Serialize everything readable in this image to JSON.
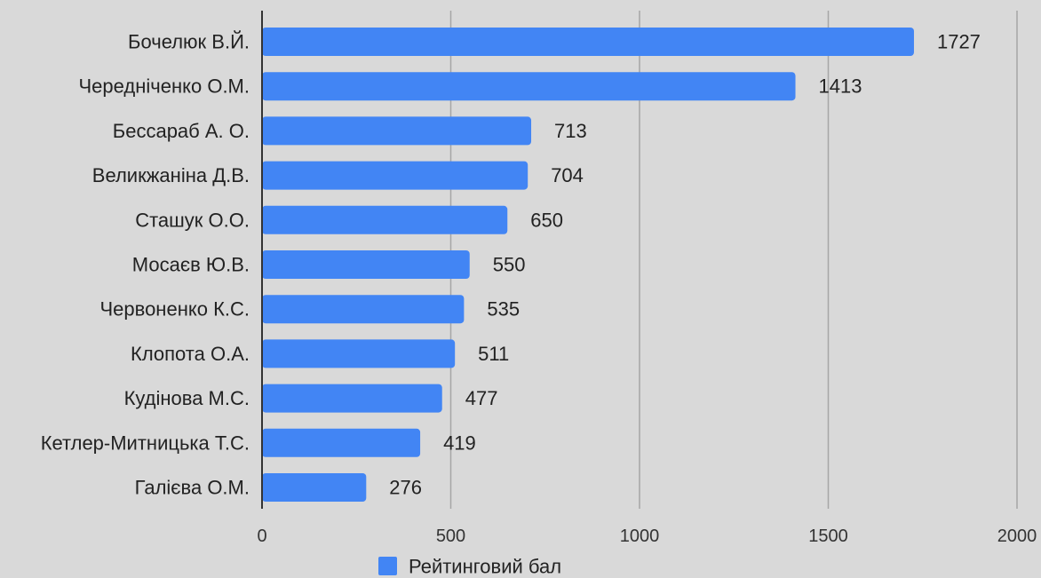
{
  "chart_data": {
    "type": "bar",
    "orientation": "horizontal",
    "categories": [
      "Бочелюк  В.Й.",
      "Чередніченко О.М.",
      "Бессараб А. О.",
      "Великжаніна Д.В.",
      "Сташук О.О.",
      "Мосаєв Ю.В.",
      "Червоненко К.С.",
      "Клопота О.А.",
      "Кудінова М.С.",
      "Кетлер-Митницька Т.С.",
      "Галієва О.М."
    ],
    "series": [
      {
        "name": "Рейтинговий бал",
        "color": "#4285f4",
        "values": [
          1727,
          1413,
          713,
          704,
          650,
          550,
          535,
          511,
          477,
          419,
          276
        ]
      }
    ],
    "xlim": [
      0,
      2000
    ],
    "x_ticks": [
      0,
      500,
      1000,
      1500,
      2000
    ],
    "grid": true,
    "legend_position": "bottom-center",
    "background": "#d9d9d9"
  }
}
